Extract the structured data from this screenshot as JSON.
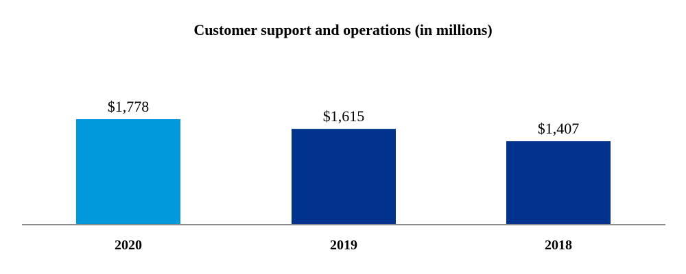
{
  "chart_data": {
    "type": "bar",
    "title": "Customer support and operations (in millions)",
    "categories": [
      "2020",
      "2019",
      "2018"
    ],
    "values": [
      1778,
      1615,
      1407
    ],
    "data_labels": [
      "$1,778",
      "$1,615",
      "$1,407"
    ],
    "bar_colors": [
      "#0299DC",
      "#00338D",
      "#00338D"
    ],
    "axis_color": "#8C8C8C",
    "ylim": [
      0,
      1778
    ],
    "grid": false,
    "legend": "none",
    "xlabel": "",
    "ylabel": ""
  }
}
